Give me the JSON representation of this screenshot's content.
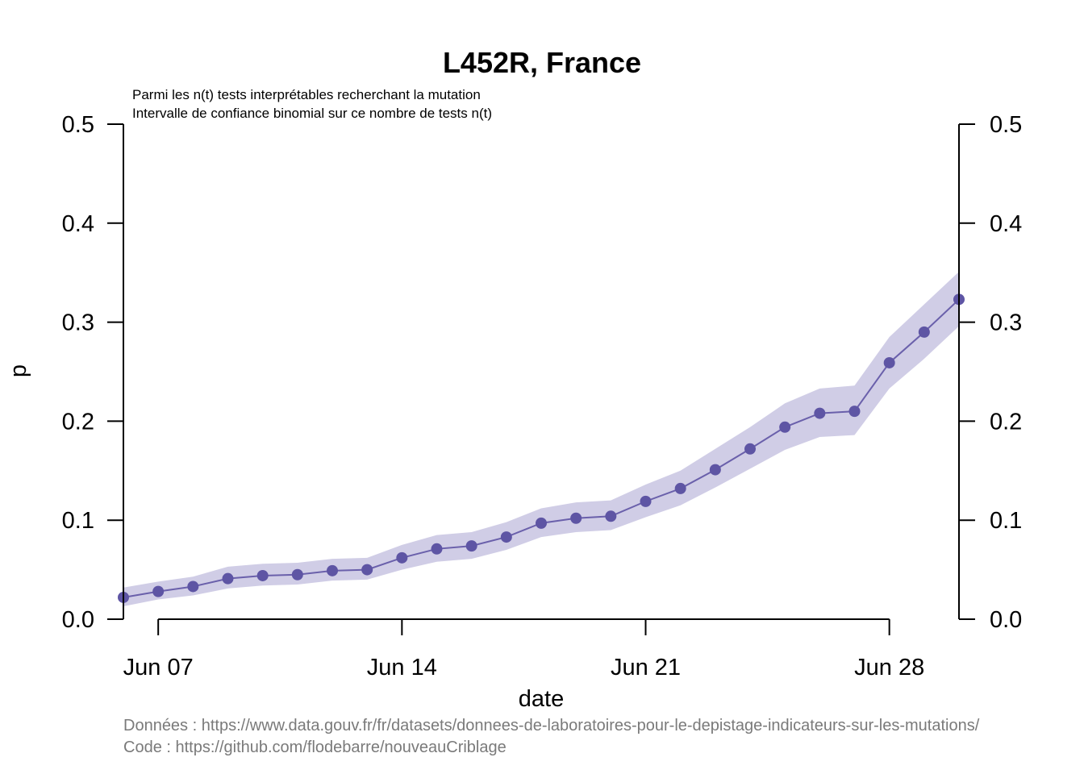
{
  "chart_data": {
    "type": "line",
    "title": "L452R, France",
    "subtitle_lines": [
      "Parmi les n(t) tests interprétables recherchant la mutation",
      "Intervalle de confiance binomial sur ce nombre de tests n(t)"
    ],
    "xlabel": "date",
    "ylabel": "p",
    "ylim": [
      0,
      0.5
    ],
    "yticks": [
      0.0,
      0.1,
      0.2,
      0.3,
      0.4,
      0.5
    ],
    "ytick_labels": [
      "0.0",
      "0.1",
      "0.2",
      "0.3",
      "0.4",
      "0.5"
    ],
    "xlim": [
      "2021-06-06",
      "2021-06-30"
    ],
    "xticks": [
      "2021-06-07",
      "2021-06-14",
      "2021-06-21",
      "2021-06-28"
    ],
    "xtick_labels": [
      "Jun 07",
      "Jun 14",
      "Jun 21",
      "Jun 28"
    ],
    "grid": false,
    "legend": "none",
    "colors": {
      "line": "#6a60ab",
      "point": "#5e55a4",
      "band": "#d0cde6",
      "axis": "#000000",
      "caption": "#7a7a7a"
    },
    "series": [
      {
        "x": [
          "2021-06-06",
          "2021-06-07",
          "2021-06-08",
          "2021-06-09",
          "2021-06-10",
          "2021-06-11",
          "2021-06-12",
          "2021-06-13",
          "2021-06-14",
          "2021-06-15",
          "2021-06-16",
          "2021-06-17",
          "2021-06-18",
          "2021-06-19",
          "2021-06-20",
          "2021-06-21",
          "2021-06-22",
          "2021-06-23",
          "2021-06-24",
          "2021-06-25",
          "2021-06-26",
          "2021-06-27",
          "2021-06-28",
          "2021-06-29",
          "2021-06-30"
        ],
        "y": [
          0.022,
          0.028,
          0.033,
          0.041,
          0.044,
          0.045,
          0.049,
          0.05,
          0.062,
          0.071,
          0.074,
          0.083,
          0.097,
          0.102,
          0.104,
          0.119,
          0.132,
          0.151,
          0.172,
          0.194,
          0.208,
          0.21,
          0.259,
          0.29,
          0.323
        ],
        "lower": [
          0.013,
          0.02,
          0.024,
          0.031,
          0.034,
          0.035,
          0.039,
          0.04,
          0.05,
          0.058,
          0.061,
          0.07,
          0.083,
          0.088,
          0.09,
          0.103,
          0.115,
          0.133,
          0.152,
          0.171,
          0.184,
          0.186,
          0.233,
          0.263,
          0.296
        ],
        "upper": [
          0.032,
          0.038,
          0.043,
          0.053,
          0.056,
          0.057,
          0.061,
          0.062,
          0.075,
          0.085,
          0.088,
          0.098,
          0.112,
          0.118,
          0.12,
          0.136,
          0.15,
          0.172,
          0.194,
          0.218,
          0.233,
          0.236,
          0.285,
          0.318,
          0.351
        ]
      }
    ]
  },
  "caption": {
    "data_source": "Données : https://www.data.gouv.fr/fr/datasets/donnees-de-laboratoires-pour-le-depistage-indicateurs-sur-les-mutations/",
    "code_source": "Code : https://github.com/flodebarre/nouveauCriblage"
  }
}
